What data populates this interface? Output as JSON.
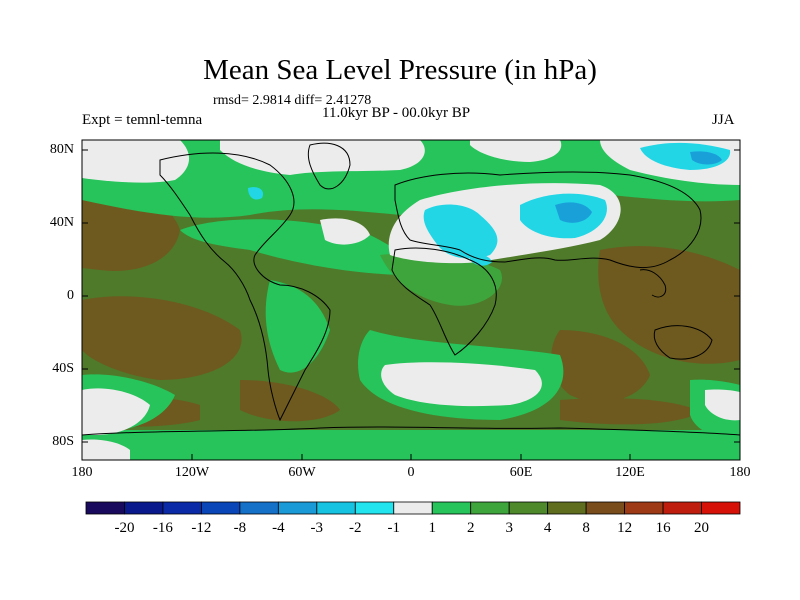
{
  "title": "Mean Sea Level Pressure (in hPa)",
  "stats": "rmsd= 2.9814 diff= 2.41278",
  "timeline": "11.0kyr BP - 00.0kyr BP",
  "experiment": "Expt = temnl-temna",
  "season": "JJA",
  "map": {
    "lat_ticks": [
      "80N",
      "40N",
      "0",
      "40S",
      "80S"
    ],
    "lon_ticks": [
      "180",
      "120W",
      "60W",
      "0",
      "60E",
      "120E",
      "180"
    ]
  },
  "colorbar": {
    "labels": [
      "-20",
      "-16",
      "-12",
      "-8",
      "-4",
      "-3",
      "-2",
      "-1",
      "1",
      "2",
      "3",
      "4",
      "8",
      "12",
      "16",
      "20"
    ],
    "colors": [
      "#1a0a5e",
      "#0a1a8c",
      "#0a2aa8",
      "#0b46b8",
      "#1570c8",
      "#1a9ad6",
      "#16c4e2",
      "#22e4ee",
      "#ececec",
      "#26c45a",
      "#3ea43c",
      "#4e8a2c",
      "#5e6e1e",
      "#7a4e1c",
      "#9e3a16",
      "#bf1e0e",
      "#d61208"
    ]
  },
  "palette": {
    "grey": "#ececec",
    "cyan": "#22d6e6",
    "light_blue": "#1aa0d8",
    "light_green": "#26c45a",
    "mid_green": "#3ea43c",
    "olive": "#4e7a2a",
    "brown": "#6e5a1e",
    "dark_brown": "#7e4a18"
  }
}
